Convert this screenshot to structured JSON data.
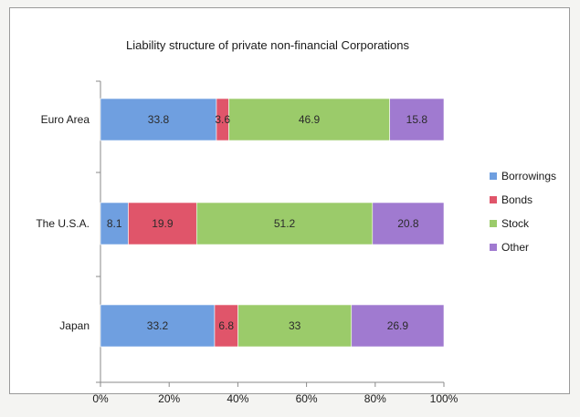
{
  "chart_data": {
    "type": "bar",
    "orientation": "horizontal",
    "stacked": "percent",
    "title": "Liability structure of private non-financial Corporations",
    "categories": [
      "Euro Area",
      "The U.S.A.",
      "Japan"
    ],
    "series": [
      {
        "name": "Borrowings",
        "color": "#6f9fe0",
        "values": [
          33.8,
          8.1,
          33.2
        ],
        "labels": [
          "33.8",
          "8.1",
          "33.2"
        ]
      },
      {
        "name": "Bonds",
        "color": "#e0556a",
        "values": [
          3.6,
          19.9,
          6.8
        ],
        "labels": [
          "3.6",
          "19.9",
          "6.8"
        ]
      },
      {
        "name": "Stock",
        "color": "#9bcb6a",
        "values": [
          46.9,
          51.2,
          33
        ],
        "labels": [
          "46.9",
          "51.2",
          "33"
        ]
      },
      {
        "name": "Other",
        "color": "#a07ad0",
        "values": [
          15.8,
          20.8,
          26.9
        ],
        "labels": [
          "15.8",
          "20.8",
          "26.9"
        ]
      }
    ],
    "x_ticks": [
      "0%",
      "20%",
      "40%",
      "60%",
      "80%",
      "100%"
    ],
    "xlim": [
      0,
      100
    ],
    "grid": false,
    "legend_position": "right"
  }
}
